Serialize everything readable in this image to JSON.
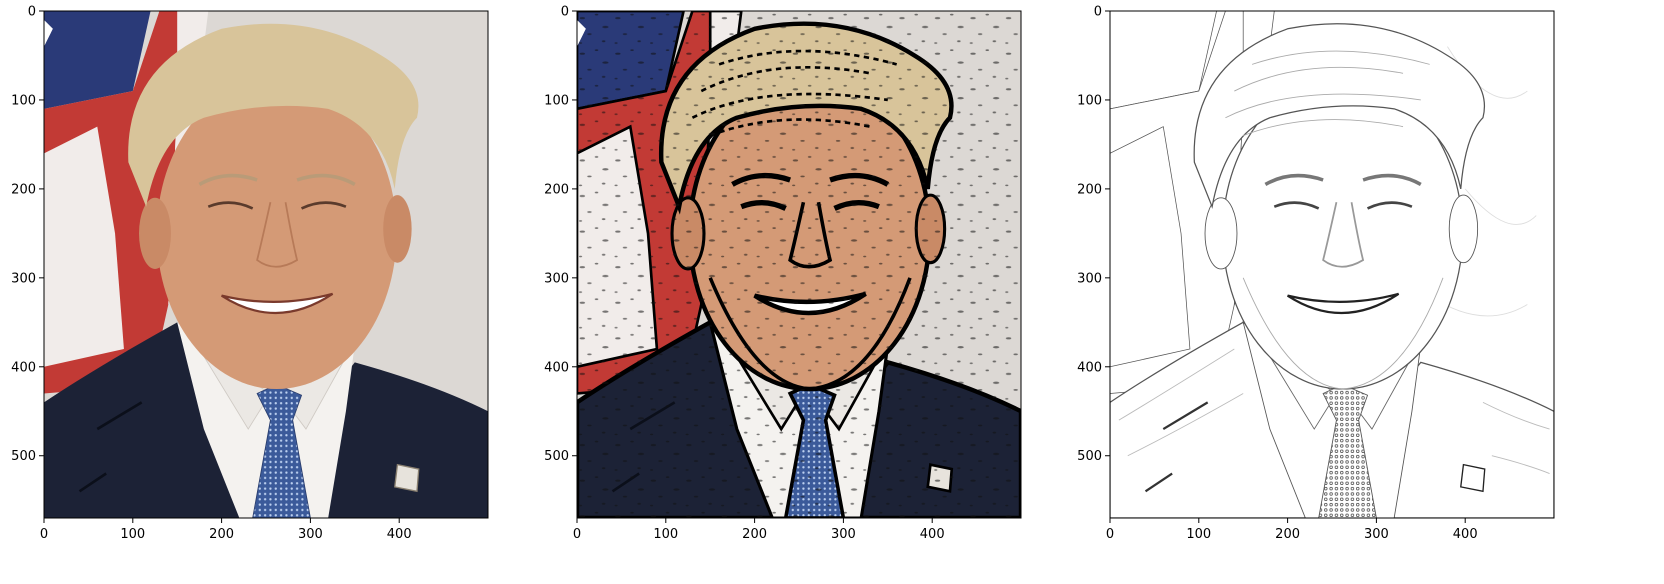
{
  "chart_data": [
    {
      "type": "image",
      "panel": "original-photo",
      "xlim": [
        0,
        500
      ],
      "ylim": [
        570,
        0
      ],
      "xticks": [
        0,
        100,
        200,
        300,
        400
      ],
      "yticks": [
        0,
        100,
        200,
        300,
        400,
        500
      ],
      "xtick_labels": [
        "0",
        "100",
        "200",
        "300",
        "400"
      ],
      "ytick_labels": [
        "0",
        "100",
        "200",
        "300",
        "400",
        "500"
      ]
    },
    {
      "type": "image",
      "panel": "cartoon-effect",
      "xlim": [
        0,
        500
      ],
      "ylim": [
        570,
        0
      ],
      "xticks": [
        0,
        100,
        200,
        300,
        400
      ],
      "yticks": [
        0,
        100,
        200,
        300,
        400,
        500
      ],
      "xtick_labels": [
        "0",
        "100",
        "200",
        "300",
        "400"
      ],
      "ytick_labels": [
        "0",
        "100",
        "200",
        "300",
        "400",
        "500"
      ]
    },
    {
      "type": "image",
      "panel": "pencil-sketch",
      "xlim": [
        0,
        500
      ],
      "ylim": [
        570,
        0
      ],
      "xticks": [
        0,
        100,
        200,
        300,
        400
      ],
      "yticks": [
        0,
        100,
        200,
        300,
        400,
        500
      ],
      "xtick_labels": [
        "0",
        "100",
        "200",
        "300",
        "400"
      ],
      "ytick_labels": [
        "0",
        "100",
        "200",
        "300",
        "400",
        "500"
      ]
    }
  ],
  "colors": {
    "flag_blue": "#2a3a78",
    "flag_red": "#c23a35",
    "flag_white": "#f1ecea",
    "wall": "#dcd8d4",
    "suit": "#1c2236",
    "shirt": "#f4f2ef",
    "skin": "#d49a76",
    "hair": "#d8c49a",
    "tie": "#3b5a9a"
  }
}
